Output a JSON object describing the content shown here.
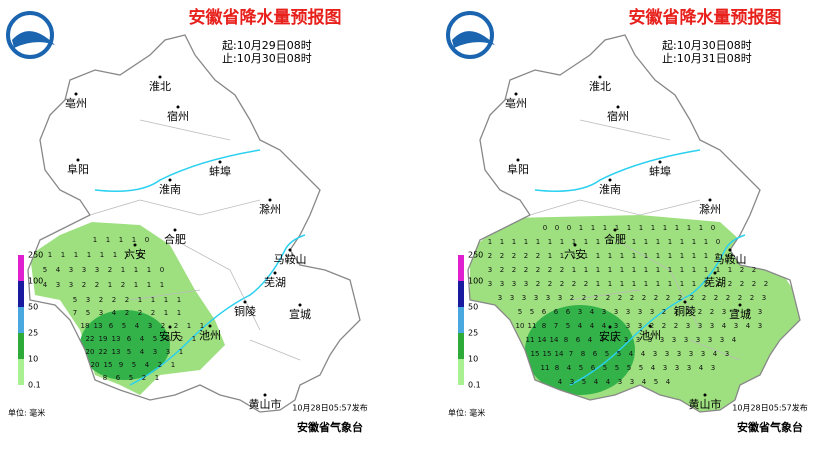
{
  "panels": [
    {
      "title": "安徽省降水量预报图",
      "start": "起:10月29日08时",
      "end": "止:10月30日08时",
      "cities": [
        "淮北",
        "宿州",
        "亳州",
        "阜阳",
        "蚌埠",
        "淮南",
        "滁州",
        "合肥",
        "六安",
        "马鞍山",
        "芜湖",
        "铜陵",
        "宣城",
        "安庆",
        "池州",
        "黄山市"
      ],
      "legend": [
        "250",
        "100",
        "50",
        "25",
        "10",
        "0.1"
      ],
      "unit": "单位: 毫米",
      "issued": "10月28日05:57发布",
      "agency": "安徽省气象台",
      "grid": [
        [
          1,
          1,
          1,
          1,
          0
        ],
        [
          1,
          1,
          1,
          1,
          1,
          1,
          0,
          0
        ],
        [
          5,
          4,
          3,
          3,
          3,
          2,
          1,
          1,
          1,
          0
        ],
        [
          4,
          3,
          3,
          2,
          2,
          1,
          2,
          1,
          1,
          1
        ],
        [
          5,
          3,
          2,
          2,
          2,
          1,
          1,
          1,
          1
        ],
        [
          7,
          5,
          3,
          4,
          2,
          2,
          2,
          1,
          1
        ],
        [
          18,
          13,
          6,
          5,
          4,
          3,
          2,
          2,
          1,
          1
        ],
        [
          22,
          19,
          13,
          6,
          4,
          5,
          3,
          2,
          1
        ],
        [
          20,
          22,
          13,
          5,
          4,
          3,
          3,
          1
        ],
        [
          20,
          15,
          9,
          5,
          4,
          2,
          1
        ],
        [
          8,
          6,
          5,
          2,
          1
        ]
      ]
    },
    {
      "title": "安徽省降水量预报图",
      "start": "起:10月30日08时",
      "end": "止:10月31日08时",
      "cities": [
        "淮北",
        "宿州",
        "亳州",
        "阜阳",
        "蚌埠",
        "淮南",
        "滁州",
        "合肥",
        "六安",
        "马鞍山",
        "芜湖",
        "铜陵",
        "宣城",
        "安庆",
        "池州",
        "黄山市"
      ],
      "legend": [
        "250",
        "100",
        "50",
        "25",
        "10",
        "0.1"
      ],
      "unit": "单位: 毫米",
      "issued": "10月28日05:57发布",
      "agency": "安徽省气象台",
      "grid": [
        [
          0,
          0,
          0,
          1,
          1,
          1,
          1,
          1,
          1,
          1,
          1,
          1,
          1,
          1,
          0
        ],
        [
          1,
          1,
          1,
          1,
          1,
          1,
          1,
          1,
          1,
          1,
          1,
          1,
          1,
          1,
          1,
          1,
          1,
          1,
          1,
          0
        ],
        [
          2,
          2,
          2,
          2,
          2,
          1,
          1,
          1,
          1,
          1,
          1,
          1,
          1,
          1,
          1,
          1,
          1,
          1,
          1,
          1,
          0
        ],
        [
          3,
          2,
          2,
          2,
          2,
          2,
          2,
          1,
          1,
          1,
          1,
          1,
          1,
          1,
          1,
          1,
          1,
          1,
          1,
          1,
          1,
          2,
          2
        ],
        [
          3,
          3,
          3,
          3,
          2,
          2,
          2,
          2,
          2,
          1,
          1,
          1,
          1,
          1,
          1,
          1,
          1,
          1,
          2,
          2,
          2,
          2,
          2,
          2
        ],
        [
          3,
          3,
          3,
          3,
          3,
          3,
          2,
          2,
          2,
          2,
          2,
          2,
          2,
          2,
          2,
          2,
          2,
          2,
          2,
          2,
          2,
          2,
          3
        ],
        [
          5,
          5,
          6,
          6,
          6,
          3,
          4,
          3,
          3,
          3,
          3,
          3,
          2,
          2,
          2,
          2,
          2,
          3,
          3,
          3,
          3
        ],
        [
          10,
          11,
          8,
          7,
          5,
          4,
          4,
          4,
          3,
          3,
          3,
          2,
          2,
          2,
          3,
          3,
          3,
          4,
          3,
          4,
          3
        ],
        [
          11,
          14,
          14,
          8,
          6,
          4,
          4,
          4,
          3,
          3,
          3,
          3,
          3,
          3,
          3,
          3,
          3,
          4
        ],
        [
          15,
          15,
          14,
          7,
          8,
          6,
          5,
          5,
          4,
          4,
          3,
          3,
          3,
          3,
          3,
          4,
          3
        ],
        [
          11,
          8,
          4,
          5,
          6,
          5,
          5,
          5,
          5,
          4,
          3,
          3,
          3,
          4,
          3
        ],
        [
          4,
          3,
          5,
          4,
          4,
          3,
          3,
          4,
          5,
          4
        ]
      ]
    }
  ]
}
